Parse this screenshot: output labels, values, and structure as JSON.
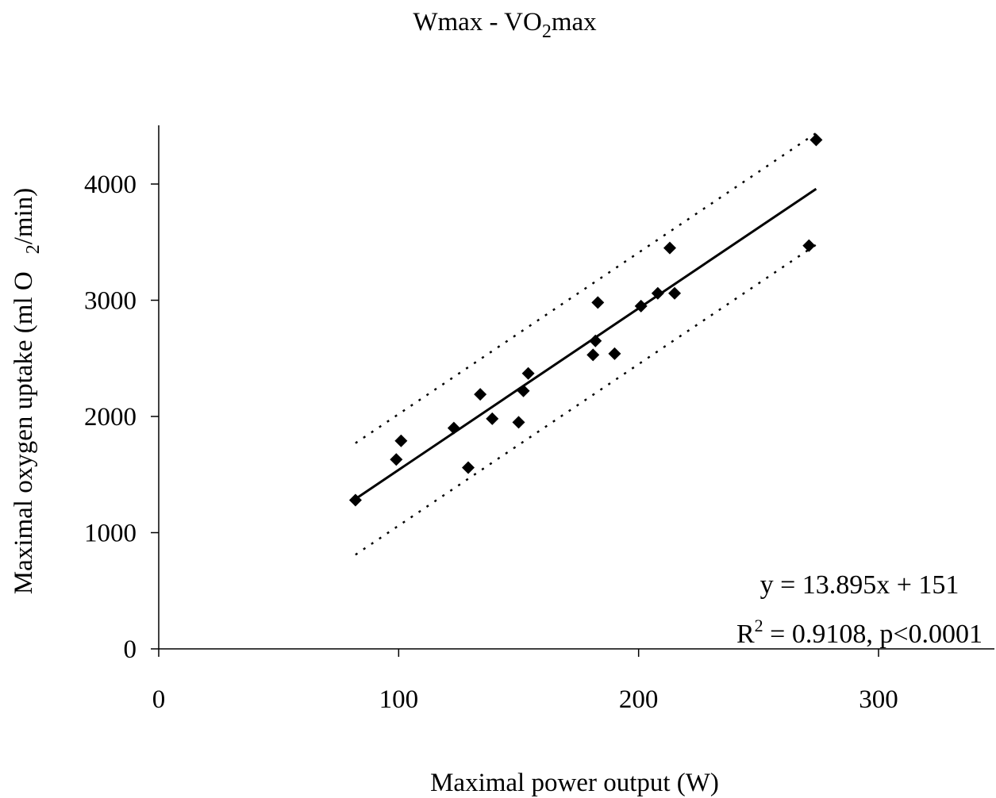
{
  "chart_data": {
    "type": "scatter",
    "title": {
      "prefix": "Wmax - VO",
      "subscript": "2",
      "suffix": "max"
    },
    "xlabel": "Maximal power output (W)",
    "ylabel": {
      "prefix": "Maximal oxygen uptake (ml O",
      "subscript": "2",
      "suffix": "/min)"
    },
    "xlim": [
      0,
      350
    ],
    "ylim": [
      0,
      4500
    ],
    "x_ticks": [
      0,
      100,
      200,
      300
    ],
    "x_tick_labels": [
      "0",
      "100",
      "200",
      "300"
    ],
    "y_ticks": [
      0,
      1000,
      2000,
      3000,
      4000
    ],
    "y_tick_labels": [
      "0",
      "1000",
      "2000",
      "3000",
      "4000"
    ],
    "grid": false,
    "legend": "none",
    "marker": "diamond",
    "points": [
      {
        "x": 82,
        "y": 1280
      },
      {
        "x": 99,
        "y": 1630
      },
      {
        "x": 101,
        "y": 1790
      },
      {
        "x": 123,
        "y": 1900
      },
      {
        "x": 129,
        "y": 1560
      },
      {
        "x": 134,
        "y": 2190
      },
      {
        "x": 139,
        "y": 1980
      },
      {
        "x": 150,
        "y": 1950
      },
      {
        "x": 152,
        "y": 2220
      },
      {
        "x": 154,
        "y": 2370
      },
      {
        "x": 181,
        "y": 2530
      },
      {
        "x": 182,
        "y": 2650
      },
      {
        "x": 183,
        "y": 2980
      },
      {
        "x": 190,
        "y": 2540
      },
      {
        "x": 201,
        "y": 2950
      },
      {
        "x": 208,
        "y": 3060
      },
      {
        "x": 213,
        "y": 3450
      },
      {
        "x": 215,
        "y": 3060
      },
      {
        "x": 271,
        "y": 3470
      },
      {
        "x": 274,
        "y": 4380
      }
    ],
    "regression": {
      "slope": 13.895,
      "intercept": 151,
      "x_range": [
        82,
        274
      ]
    },
    "prediction_band": {
      "offset": 480,
      "x_range": [
        82,
        274
      ]
    },
    "annotations": {
      "equation": "y = 13.895x + 151",
      "r2_prefix": "R",
      "r2_superscript": "2",
      "r2_suffix": " = 0.9108, p<0.0001"
    }
  }
}
